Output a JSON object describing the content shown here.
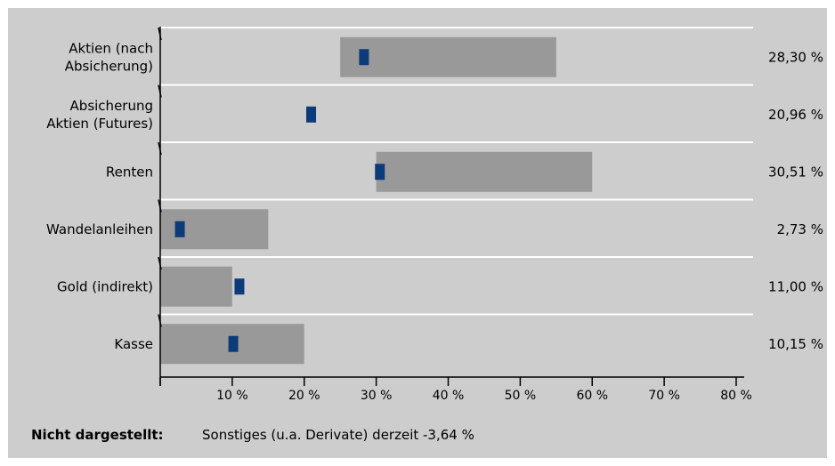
{
  "chart_data": {
    "type": "bar",
    "orientation": "horizontal",
    "categories": [
      [
        "Aktien (nach",
        "Absicherung)"
      ],
      [
        "Absicherung",
        "Aktien (Futures)"
      ],
      [
        "Renten"
      ],
      [
        "Wandelanleihen"
      ],
      [
        "Gold (indirekt)"
      ],
      [
        "Kasse"
      ]
    ],
    "ranges": [
      [
        25,
        55
      ],
      null,
      [
        30,
        60
      ],
      [
        0,
        15
      ],
      [
        0,
        10
      ],
      [
        0,
        20
      ]
    ],
    "markers": [
      28.3,
      20.96,
      30.51,
      2.73,
      11.0,
      10.15
    ],
    "value_labels": [
      "28,30 %",
      "20,96 %",
      "30,51 %",
      "2,73 %",
      "11,00 %",
      "10,15 %"
    ],
    "xlim": [
      0,
      80
    ],
    "x_ticks": [
      0,
      10,
      20,
      30,
      40,
      50,
      60,
      70,
      80
    ],
    "x_tick_labels": [
      "",
      "10 %",
      "20 %",
      "30 %",
      "40 %",
      "50 %",
      "60 %",
      "70 %",
      "80 %"
    ],
    "colors": {
      "background": "#cdcdcd",
      "range_bar": "#999999",
      "marker": "#0d3a78",
      "separator": "#ffffff",
      "axis": "#000000"
    },
    "grid": false
  },
  "footnote": {
    "label": "Nicht dargestellt:",
    "text": "Sonstiges (u.a. Derivate) derzeit  -3,64 %"
  }
}
